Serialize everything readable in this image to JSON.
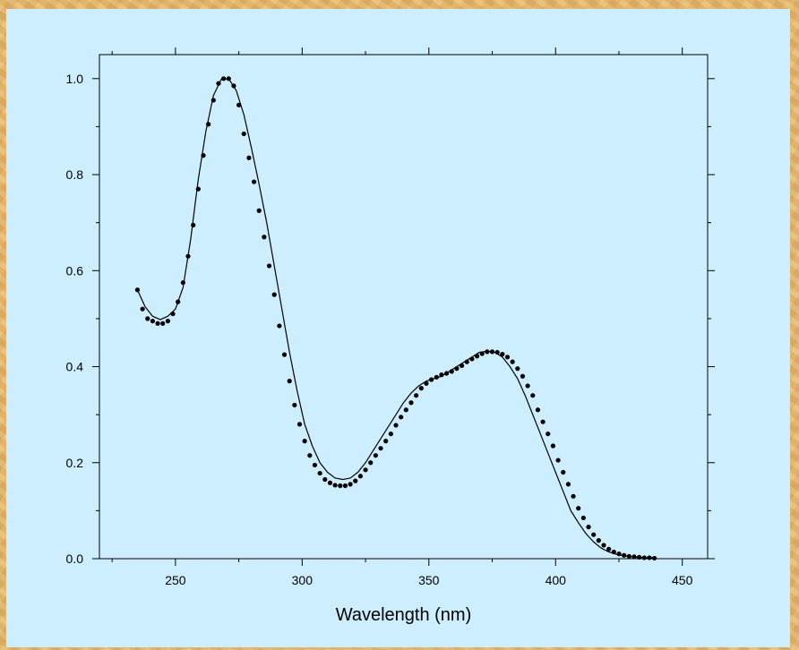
{
  "chart_data": {
    "type": "line",
    "xlabel": "Wavelength (nm)",
    "ylabel": "",
    "xlim": [
      220,
      460
    ],
    "ylim": [
      0.0,
      1.05
    ],
    "x_ticks": [
      250,
      300,
      350,
      400,
      450
    ],
    "y_ticks": [
      0.0,
      0.2,
      0.4,
      0.6,
      0.8,
      1.0
    ],
    "x_tick_labels": [
      "250",
      "300",
      "350",
      "400",
      "450"
    ],
    "y_tick_labels": [
      "0.0",
      "0.2",
      "0.4",
      "0.6",
      "0.8",
      "1.0"
    ],
    "grid": false,
    "colors": {
      "line": "#000000",
      "points": "#000000",
      "background": "#cdeeff"
    },
    "series": [
      {
        "style": "line",
        "x": [
          235,
          238,
          241,
          244,
          247,
          250,
          253,
          256,
          259,
          262,
          265,
          268,
          271,
          274,
          277,
          280,
          283,
          286,
          289,
          292,
          295,
          298,
          301,
          304,
          307,
          310,
          313,
          316,
          319,
          322,
          325,
          328,
          331,
          334,
          337,
          340,
          343,
          346,
          349,
          352,
          355,
          358,
          361,
          364,
          367,
          370,
          373,
          376,
          379,
          382,
          385,
          388,
          391,
          394,
          397,
          400,
          403,
          406,
          409,
          412,
          415,
          418,
          421,
          424,
          427,
          430,
          433,
          436,
          439
        ],
        "y": [
          0.56,
          0.525,
          0.505,
          0.498,
          0.505,
          0.52,
          0.565,
          0.665,
          0.79,
          0.89,
          0.965,
          0.998,
          1.0,
          0.975,
          0.925,
          0.855,
          0.78,
          0.7,
          0.61,
          0.52,
          0.43,
          0.35,
          0.28,
          0.235,
          0.2,
          0.18,
          0.168,
          0.165,
          0.168,
          0.18,
          0.2,
          0.225,
          0.25,
          0.275,
          0.3,
          0.325,
          0.345,
          0.36,
          0.37,
          0.375,
          0.38,
          0.39,
          0.4,
          0.41,
          0.42,
          0.43,
          0.432,
          0.43,
          0.42,
          0.4,
          0.375,
          0.34,
          0.3,
          0.26,
          0.22,
          0.18,
          0.14,
          0.1,
          0.075,
          0.052,
          0.035,
          0.022,
          0.014,
          0.009,
          0.006,
          0.004,
          0.003,
          0.002,
          0.002
        ]
      },
      {
        "style": "scatter",
        "x": [
          235,
          237,
          239,
          241,
          243,
          245,
          247,
          249,
          251,
          253,
          255,
          257,
          259,
          261,
          263,
          265,
          267,
          269,
          271,
          273,
          275,
          277,
          279,
          281,
          283,
          285,
          287,
          289,
          291,
          293,
          295,
          297,
          299,
          301,
          303,
          305,
          307,
          309,
          311,
          313,
          315,
          317,
          319,
          321,
          323,
          325,
          327,
          329,
          331,
          333,
          335,
          337,
          339,
          341,
          343,
          345,
          347,
          349,
          351,
          353,
          355,
          357,
          359,
          361,
          363,
          365,
          367,
          369,
          371,
          373,
          375,
          377,
          379,
          381,
          383,
          385,
          387,
          389,
          391,
          393,
          395,
          397,
          399,
          401,
          403,
          405,
          407,
          409,
          411,
          413,
          415,
          417,
          419,
          421,
          423,
          425,
          427,
          429,
          431,
          433,
          435,
          437,
          439
        ],
        "y": [
          0.56,
          0.52,
          0.5,
          0.495,
          0.49,
          0.49,
          0.495,
          0.51,
          0.535,
          0.575,
          0.63,
          0.695,
          0.77,
          0.84,
          0.905,
          0.955,
          0.99,
          1.0,
          1.0,
          0.985,
          0.945,
          0.885,
          0.835,
          0.785,
          0.725,
          0.67,
          0.61,
          0.55,
          0.485,
          0.425,
          0.37,
          0.32,
          0.28,
          0.245,
          0.215,
          0.195,
          0.178,
          0.165,
          0.158,
          0.153,
          0.152,
          0.152,
          0.155,
          0.162,
          0.172,
          0.185,
          0.2,
          0.215,
          0.23,
          0.245,
          0.26,
          0.278,
          0.295,
          0.31,
          0.325,
          0.34,
          0.355,
          0.365,
          0.373,
          0.378,
          0.383,
          0.386,
          0.39,
          0.396,
          0.402,
          0.41,
          0.416,
          0.422,
          0.427,
          0.431,
          0.431,
          0.43,
          0.426,
          0.42,
          0.41,
          0.396,
          0.38,
          0.36,
          0.34,
          0.31,
          0.285,
          0.26,
          0.235,
          0.205,
          0.18,
          0.155,
          0.13,
          0.105,
          0.085,
          0.066,
          0.05,
          0.038,
          0.028,
          0.02,
          0.014,
          0.01,
          0.007,
          0.005,
          0.004,
          0.003,
          0.002,
          0.002,
          0.001
        ]
      }
    ]
  }
}
